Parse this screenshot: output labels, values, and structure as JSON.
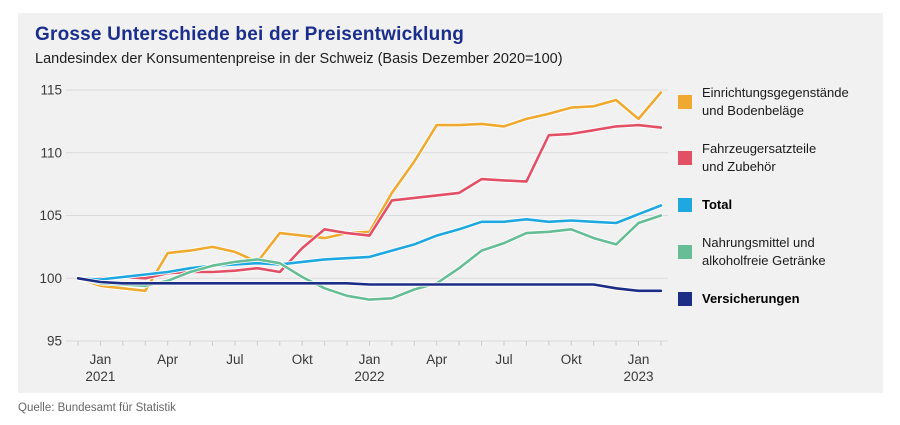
{
  "footer": {
    "source": "Quelle: Bundesamt für Statistik"
  },
  "colors": {
    "title_text": "#1b2e8c",
    "panel_background": "#f1f1f1",
    "gridline": "#dbdbdb",
    "axis_tick": "#c9c9c9",
    "axis_text": "#3a3a3a"
  },
  "chart_data": {
    "type": "line",
    "title": "Grosse Unterschiede bei der Preisentwicklung",
    "subtitle": "Landesindex der Konsumentenpreise in der Schweiz (Basis Dezember 2020=100)",
    "xlabel": "",
    "ylabel": "",
    "ylim": [
      95,
      115
    ],
    "yticks": [
      95,
      100,
      105,
      110,
      115
    ],
    "grid": "horizontal",
    "legend_position": "right",
    "x": [
      "Dez 2020",
      "Jan 2021",
      "Feb 2021",
      "Mär 2021",
      "Apr 2021",
      "Mai 2021",
      "Jun 2021",
      "Jul 2021",
      "Aug 2021",
      "Sep 2021",
      "Okt 2021",
      "Nov 2021",
      "Dez 2021",
      "Jan 2022",
      "Feb 2022",
      "Mär 2022",
      "Apr 2022",
      "Mai 2022",
      "Jun 2022",
      "Jul 2022",
      "Aug 2022",
      "Sep 2022",
      "Okt 2022",
      "Nov 2022",
      "Dez 2022",
      "Jan 2023",
      "Feb 2023"
    ],
    "x_ticks": [
      {
        "i": 1,
        "label": "Jan",
        "year": "2021"
      },
      {
        "i": 4,
        "label": "Apr",
        "year": ""
      },
      {
        "i": 7,
        "label": "Jul",
        "year": ""
      },
      {
        "i": 10,
        "label": "Okt",
        "year": ""
      },
      {
        "i": 13,
        "label": "Jan",
        "year": "2022"
      },
      {
        "i": 16,
        "label": "Apr",
        "year": ""
      },
      {
        "i": 19,
        "label": "Jul",
        "year": ""
      },
      {
        "i": 22,
        "label": "Okt",
        "year": ""
      },
      {
        "i": 25,
        "label": "Jan",
        "year": "2023"
      }
    ],
    "series": [
      {
        "id": "einrichtungsgegenstaende",
        "name": "Einrichtungsgegenstände und Bodenbeläge",
        "legend_lines": [
          "Einrichtungsgegenstände",
          "und Bodenbeläge"
        ],
        "bold": false,
        "color": "#f0a930",
        "values": [
          100,
          99.4,
          99.2,
          99.0,
          102.0,
          102.2,
          102.5,
          102.1,
          101.3,
          103.6,
          103.4,
          103.2,
          103.6,
          103.7,
          106.8,
          109.3,
          112.2,
          112.2,
          112.3,
          112.1,
          112.7,
          113.1,
          113.6,
          113.7,
          114.2,
          112.7,
          114.8
        ]
      },
      {
        "id": "fahrzeugersatzteile",
        "name": "Fahrzeugersatzteile und Zubehör",
        "legend_lines": [
          "Fahrzeugersatzteile",
          "und Zubehör"
        ],
        "bold": false,
        "color": "#e25066",
        "values": [
          100,
          100.0,
          100.1,
          100.0,
          100.4,
          100.5,
          100.5,
          100.6,
          100.8,
          100.5,
          102.4,
          103.9,
          103.6,
          103.4,
          106.2,
          106.4,
          106.6,
          106.8,
          107.9,
          107.8,
          107.7,
          111.4,
          111.5,
          111.8,
          112.1,
          112.2,
          112.0
        ]
      },
      {
        "id": "total",
        "name": "Total",
        "legend_lines": [
          "Total"
        ],
        "bold": true,
        "color": "#1fa8e0",
        "values": [
          100,
          99.9,
          100.1,
          100.3,
          100.5,
          100.8,
          101.0,
          101.1,
          101.2,
          101.1,
          101.3,
          101.5,
          101.6,
          101.7,
          102.2,
          102.7,
          103.4,
          103.9,
          104.5,
          104.5,
          104.7,
          104.5,
          104.6,
          104.5,
          104.4,
          105.1,
          105.8
        ]
      },
      {
        "id": "nahrungsmittel",
        "name": "Nahrungsmittel und alkoholfreie Getränke",
        "legend_lines": [
          "Nahrungsmittel und",
          "alkoholfreie Getränke"
        ],
        "bold": false,
        "color": "#66bd96",
        "values": [
          100,
          99.6,
          99.5,
          99.4,
          99.8,
          100.5,
          101.0,
          101.3,
          101.5,
          101.2,
          100.1,
          99.2,
          98.6,
          98.3,
          98.4,
          99.1,
          99.6,
          100.8,
          102.2,
          102.8,
          103.6,
          103.7,
          103.9,
          103.2,
          102.7,
          104.4,
          105.0
        ]
      },
      {
        "id": "versicherungen",
        "name": "Versicherungen",
        "legend_lines": [
          "Versicherungen"
        ],
        "bold": true,
        "color": "#1b2d85",
        "values": [
          100,
          99.7,
          99.6,
          99.6,
          99.6,
          99.6,
          99.6,
          99.6,
          99.6,
          99.6,
          99.6,
          99.6,
          99.6,
          99.5,
          99.5,
          99.5,
          99.5,
          99.5,
          99.5,
          99.5,
          99.5,
          99.5,
          99.5,
          99.5,
          99.2,
          99.0,
          99.0
        ]
      }
    ]
  }
}
